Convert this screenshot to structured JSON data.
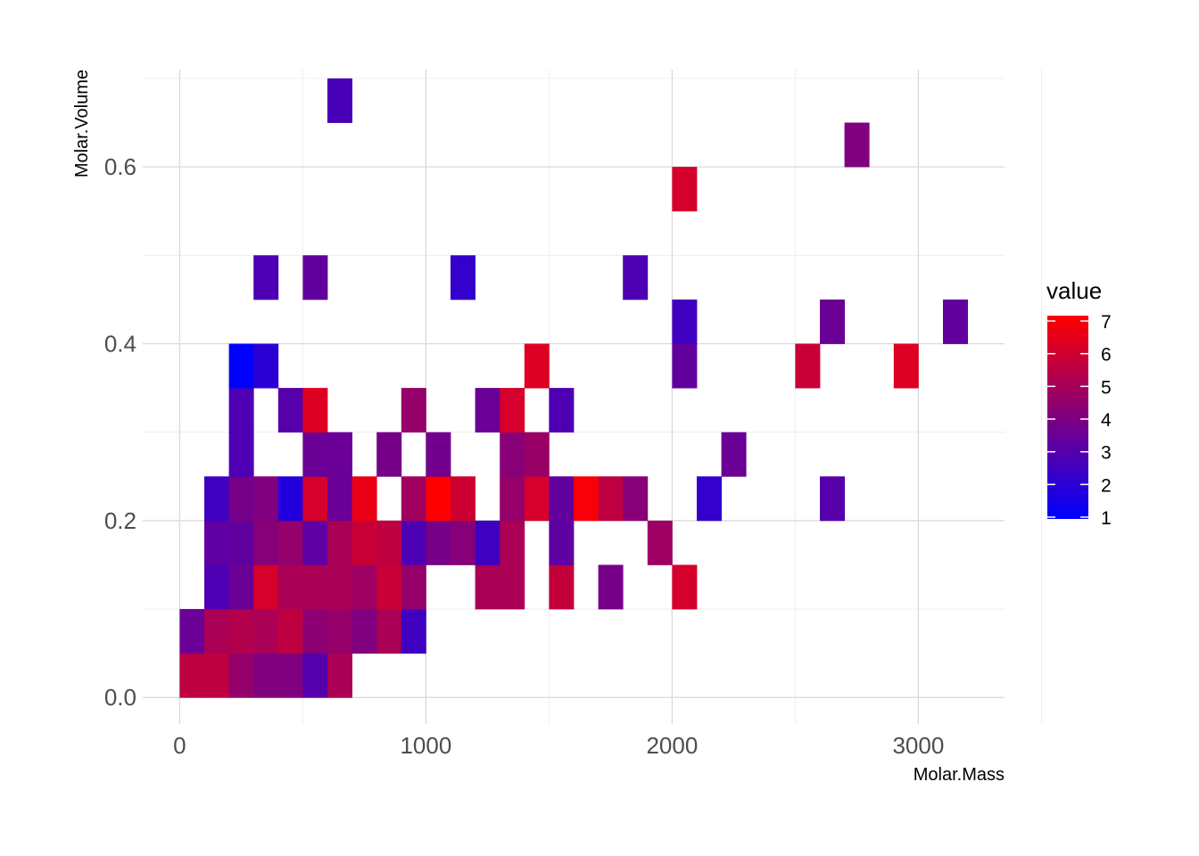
{
  "chart_data": {
    "type": "heatmap",
    "title": "",
    "xlabel": "Molar.Mass",
    "ylabel": "Molar.Volume",
    "xlim": [
      -150,
      3350
    ],
    "ylim": [
      -0.03,
      0.71
    ],
    "x_ticks": [
      0,
      1000,
      2000,
      3000
    ],
    "x_tick_labels": [
      "0",
      "1000",
      "2000",
      "3000"
    ],
    "y_ticks": [
      0.0,
      0.2,
      0.4,
      0.6
    ],
    "y_tick_labels": [
      "0.0",
      "0.2",
      "0.4",
      "0.6"
    ],
    "bin_width": 100,
    "bin_height": 0.05,
    "grid": true,
    "legend": {
      "title": "value",
      "position": "right",
      "min": 1,
      "max": 7,
      "ticks": [
        "1",
        "2",
        "3",
        "4",
        "5",
        "6",
        "7"
      ],
      "low_color": "#0000ff",
      "high_color": "#ff0000"
    },
    "cells": [
      {
        "x": 0,
        "y": 0.0,
        "value": 5.5
      },
      {
        "x": 100,
        "y": 0.0,
        "value": 5.5
      },
      {
        "x": 200,
        "y": 0.0,
        "value": 4.5
      },
      {
        "x": 300,
        "y": 0.0,
        "value": 4
      },
      {
        "x": 400,
        "y": 0.0,
        "value": 4
      },
      {
        "x": 500,
        "y": 0.0,
        "value": 3
      },
      {
        "x": 600,
        "y": 0.0,
        "value": 5
      },
      {
        "x": 0,
        "y": 0.05,
        "value": 3.5
      },
      {
        "x": 100,
        "y": 0.05,
        "value": 5
      },
      {
        "x": 200,
        "y": 0.05,
        "value": 5.2
      },
      {
        "x": 300,
        "y": 0.05,
        "value": 5
      },
      {
        "x": 400,
        "y": 0.05,
        "value": 5.5
      },
      {
        "x": 500,
        "y": 0.05,
        "value": 4.3
      },
      {
        "x": 600,
        "y": 0.05,
        "value": 4.5
      },
      {
        "x": 700,
        "y": 0.05,
        "value": 4
      },
      {
        "x": 800,
        "y": 0.05,
        "value": 5
      },
      {
        "x": 900,
        "y": 0.05,
        "value": 2.5
      },
      {
        "x": 100,
        "y": 0.1,
        "value": 2.8
      },
      {
        "x": 200,
        "y": 0.1,
        "value": 3.5
      },
      {
        "x": 300,
        "y": 0.1,
        "value": 6
      },
      {
        "x": 400,
        "y": 0.1,
        "value": 5
      },
      {
        "x": 500,
        "y": 0.1,
        "value": 5
      },
      {
        "x": 600,
        "y": 0.1,
        "value": 5
      },
      {
        "x": 700,
        "y": 0.1,
        "value": 4.7
      },
      {
        "x": 800,
        "y": 0.1,
        "value": 5.7
      },
      {
        "x": 900,
        "y": 0.1,
        "value": 4.5
      },
      {
        "x": 1200,
        "y": 0.1,
        "value": 5
      },
      {
        "x": 1300,
        "y": 0.1,
        "value": 5
      },
      {
        "x": 1500,
        "y": 0.1,
        "value": 5.6
      },
      {
        "x": 1700,
        "y": 0.1,
        "value": 3.8
      },
      {
        "x": 2000,
        "y": 0.1,
        "value": 6
      },
      {
        "x": 100,
        "y": 0.15,
        "value": 3.2
      },
      {
        "x": 200,
        "y": 0.15,
        "value": 3.3
      },
      {
        "x": 300,
        "y": 0.15,
        "value": 4.2
      },
      {
        "x": 400,
        "y": 0.15,
        "value": 4.5
      },
      {
        "x": 500,
        "y": 0.15,
        "value": 3.2
      },
      {
        "x": 600,
        "y": 0.15,
        "value": 5
      },
      {
        "x": 700,
        "y": 0.15,
        "value": 5.7
      },
      {
        "x": 800,
        "y": 0.15,
        "value": 5.5
      },
      {
        "x": 900,
        "y": 0.15,
        "value": 2.8
      },
      {
        "x": 1000,
        "y": 0.15,
        "value": 3.8
      },
      {
        "x": 1100,
        "y": 0.15,
        "value": 4.2
      },
      {
        "x": 1200,
        "y": 0.15,
        "value": 2.5
      },
      {
        "x": 1300,
        "y": 0.15,
        "value": 5
      },
      {
        "x": 1500,
        "y": 0.15,
        "value": 3.2
      },
      {
        "x": 1900,
        "y": 0.15,
        "value": 4.7
      },
      {
        "x": 100,
        "y": 0.2,
        "value": 2.5
      },
      {
        "x": 200,
        "y": 0.2,
        "value": 3.8
      },
      {
        "x": 300,
        "y": 0.2,
        "value": 4
      },
      {
        "x": 400,
        "y": 0.2,
        "value": 1.8
      },
      {
        "x": 500,
        "y": 0.2,
        "value": 6
      },
      {
        "x": 600,
        "y": 0.2,
        "value": 3.5
      },
      {
        "x": 700,
        "y": 0.2,
        "value": 6.5
      },
      {
        "x": 900,
        "y": 0.2,
        "value": 4.8
      },
      {
        "x": 1000,
        "y": 0.2,
        "value": 7
      },
      {
        "x": 1100,
        "y": 0.2,
        "value": 5.8
      },
      {
        "x": 1300,
        "y": 0.2,
        "value": 4.5
      },
      {
        "x": 1400,
        "y": 0.2,
        "value": 6
      },
      {
        "x": 1500,
        "y": 0.2,
        "value": 3.3
      },
      {
        "x": 1600,
        "y": 0.2,
        "value": 6.8
      },
      {
        "x": 1700,
        "y": 0.2,
        "value": 5.5
      },
      {
        "x": 1800,
        "y": 0.2,
        "value": 4.2
      },
      {
        "x": 2100,
        "y": 0.2,
        "value": 2.2
      },
      {
        "x": 2600,
        "y": 0.2,
        "value": 3
      },
      {
        "x": 200,
        "y": 0.25,
        "value": 2.8
      },
      {
        "x": 500,
        "y": 0.25,
        "value": 3.5
      },
      {
        "x": 600,
        "y": 0.25,
        "value": 3.5
      },
      {
        "x": 800,
        "y": 0.25,
        "value": 3.8
      },
      {
        "x": 1000,
        "y": 0.25,
        "value": 3.7
      },
      {
        "x": 1300,
        "y": 0.25,
        "value": 4.2
      },
      {
        "x": 1400,
        "y": 0.25,
        "value": 4.6
      },
      {
        "x": 2200,
        "y": 0.25,
        "value": 3.5
      },
      {
        "x": 200,
        "y": 0.3,
        "value": 2.8
      },
      {
        "x": 400,
        "y": 0.3,
        "value": 3
      },
      {
        "x": 500,
        "y": 0.3,
        "value": 6.2
      },
      {
        "x": 900,
        "y": 0.3,
        "value": 4.5
      },
      {
        "x": 1200,
        "y": 0.3,
        "value": 3.5
      },
      {
        "x": 1300,
        "y": 0.3,
        "value": 6
      },
      {
        "x": 1500,
        "y": 0.3,
        "value": 2.8
      },
      {
        "x": 200,
        "y": 0.35,
        "value": 1
      },
      {
        "x": 300,
        "y": 0.35,
        "value": 2
      },
      {
        "x": 1400,
        "y": 0.35,
        "value": 6.2
      },
      {
        "x": 2000,
        "y": 0.35,
        "value": 3.3
      },
      {
        "x": 2500,
        "y": 0.35,
        "value": 5.7
      },
      {
        "x": 2900,
        "y": 0.35,
        "value": 6.2
      },
      {
        "x": 2000,
        "y": 0.4,
        "value": 2.5
      },
      {
        "x": 2600,
        "y": 0.4,
        "value": 3.5
      },
      {
        "x": 3100,
        "y": 0.4,
        "value": 3.3
      },
      {
        "x": 300,
        "y": 0.45,
        "value": 2.8
      },
      {
        "x": 500,
        "y": 0.45,
        "value": 3.3
      },
      {
        "x": 1100,
        "y": 0.45,
        "value": 2.2
      },
      {
        "x": 1800,
        "y": 0.45,
        "value": 2.8
      },
      {
        "x": 2000,
        "y": 0.55,
        "value": 6
      },
      {
        "x": 2700,
        "y": 0.6,
        "value": 4
      },
      {
        "x": 600,
        "y": 0.65,
        "value": 2.7
      }
    ]
  }
}
